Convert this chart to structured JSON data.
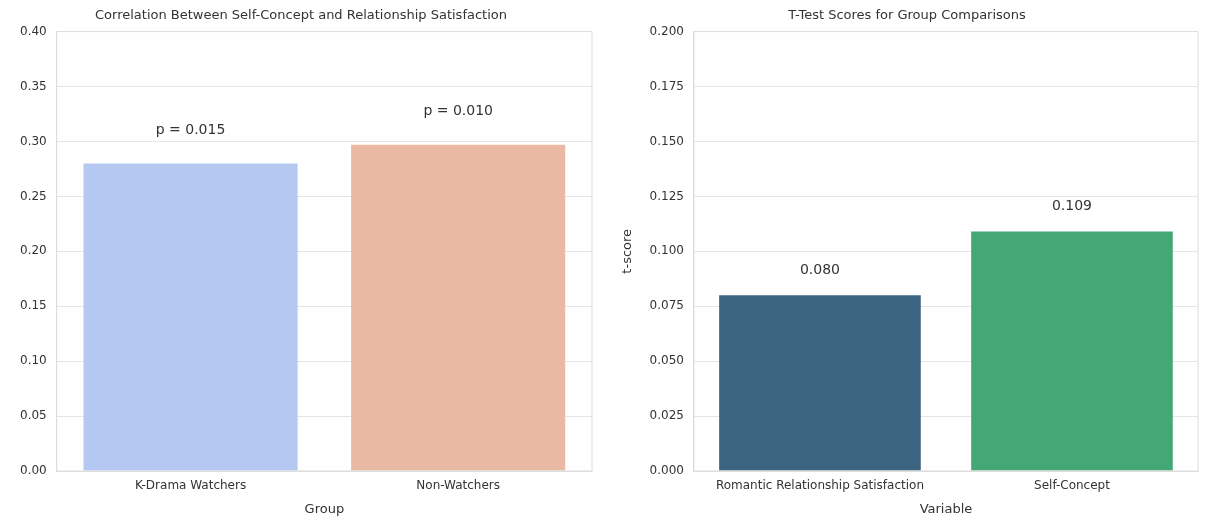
{
  "chart_data": [
    {
      "type": "bar",
      "title": "Correlation Between Self-Concept and Relationship Satisfaction",
      "xlabel": "Group",
      "categories": [
        "K-Drama Watchers",
        "Non-Watchers"
      ],
      "values": [
        0.28,
        0.297
      ],
      "colors": [
        "#b4c8f2",
        "#eab9a3"
      ],
      "ylim": [
        0,
        0.4
      ],
      "yticks": [
        {
          "value": 0,
          "label": "0.00"
        },
        0.05,
        {
          "value": 0.1,
          "label": "0.10"
        },
        0.15,
        {
          "value": 0.2,
          "label": "0.20"
        },
        0.25,
        {
          "value": 0.3,
          "label": "0.30"
        },
        0.35,
        {
          "value": 0.4,
          "label": "0.40"
        }
      ],
      "grid": "y",
      "annotations": [
        "p = 0.015",
        "p = 0.010"
      ]
    },
    {
      "type": "bar",
      "title": "T-Test Scores for Group Comparisons",
      "xlabel": "Variable",
      "ylabel": "t-score",
      "categories": [
        "Romantic Relationship Satisfaction",
        "Self-Concept"
      ],
      "values": [
        0.08,
        0.109
      ],
      "colors": [
        "#3d6480",
        "#45a776"
      ],
      "value_labels": [
        "0.080",
        "0.109"
      ],
      "ylim": [
        0,
        0.2
      ],
      "yticks": [
        {
          "value": 0,
          "label": "0.000"
        },
        0.025,
        {
          "value": 0.05,
          "label": "0.050"
        },
        0.075,
        {
          "value": 0.1,
          "label": "0.100"
        },
        0.125,
        {
          "value": 0.15,
          "label": "0.150"
        },
        0.175,
        {
          "value": 0.2,
          "label": "0.200"
        }
      ],
      "grid": "y"
    }
  ]
}
